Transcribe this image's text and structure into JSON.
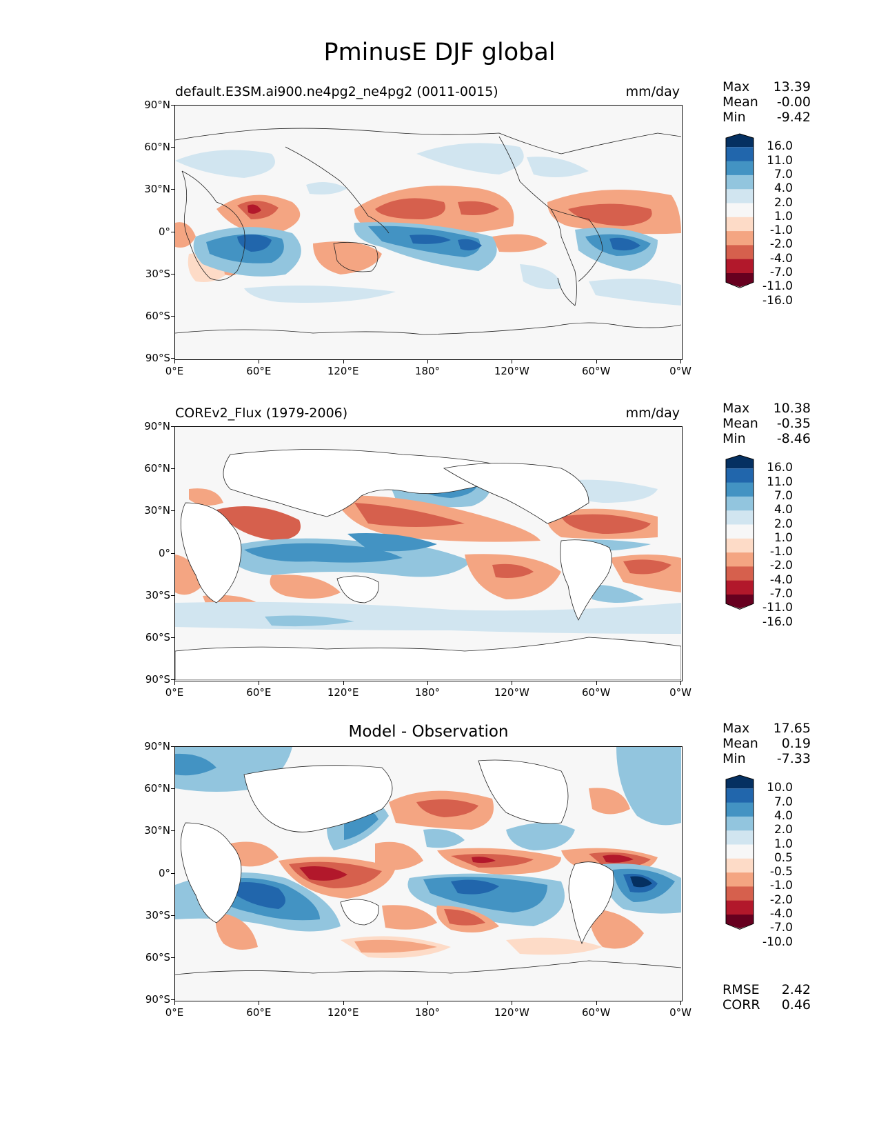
{
  "figure_title": "PminusE DJF global",
  "x_ticks": [
    "0°E",
    "60°E",
    "120°E",
    "180°",
    "120°W",
    "60°W",
    "0°W"
  ],
  "y_ticks": [
    "90°N",
    "60°N",
    "30°N",
    "0°",
    "30°S",
    "60°S",
    "90°S"
  ],
  "colors": {
    "blues": [
      "#053061",
      "#2166ac",
      "#4393c3",
      "#92c5de",
      "#d1e5f0",
      "#f7f7f7"
    ],
    "reds": [
      "#fddbc7",
      "#f4a582",
      "#d6604d",
      "#b2182b",
      "#67001f"
    ]
  },
  "panels": [
    {
      "left_title": "default.E3SM.ai900.ne4pg2_ne4pg2 (0011-0015)",
      "right_title": "mm/day",
      "center_title": "",
      "stats": [
        {
          "label": "Max",
          "value": "13.39"
        },
        {
          "label": "Mean",
          "value": "-0.00"
        },
        {
          "label": "Min",
          "value": "-9.42"
        }
      ],
      "colorbar_levels": [
        "16.0",
        "11.0",
        "7.0",
        "4.0",
        "2.0",
        "1.0",
        "-1.0",
        "-2.0",
        "-4.0",
        "-7.0",
        "-11.0",
        "-16.0"
      ],
      "extra_stats": []
    },
    {
      "left_title": "COREv2_Flux (1979-2006)",
      "right_title": "mm/day",
      "center_title": "",
      "stats": [
        {
          "label": "Max",
          "value": "10.38"
        },
        {
          "label": "Mean",
          "value": "-0.35"
        },
        {
          "label": "Min",
          "value": "-8.46"
        }
      ],
      "colorbar_levels": [
        "16.0",
        "11.0",
        "7.0",
        "4.0",
        "2.0",
        "1.0",
        "-1.0",
        "-2.0",
        "-4.0",
        "-7.0",
        "-11.0",
        "-16.0"
      ],
      "extra_stats": []
    },
    {
      "left_title": "",
      "right_title": "",
      "center_title": "Model - Observation",
      "stats": [
        {
          "label": "Max",
          "value": "17.65"
        },
        {
          "label": "Mean",
          "value": "0.19"
        },
        {
          "label": "Min",
          "value": "-7.33"
        }
      ],
      "colorbar_levels": [
        "10.0",
        "7.0",
        "4.0",
        "2.0",
        "1.0",
        "0.5",
        "-0.5",
        "-1.0",
        "-2.0",
        "-4.0",
        "-7.0",
        "-10.0"
      ],
      "extra_stats": [
        {
          "label": "RMSE",
          "value": "2.42"
        },
        {
          "label": "CORR",
          "value": "0.46"
        }
      ]
    }
  ]
}
